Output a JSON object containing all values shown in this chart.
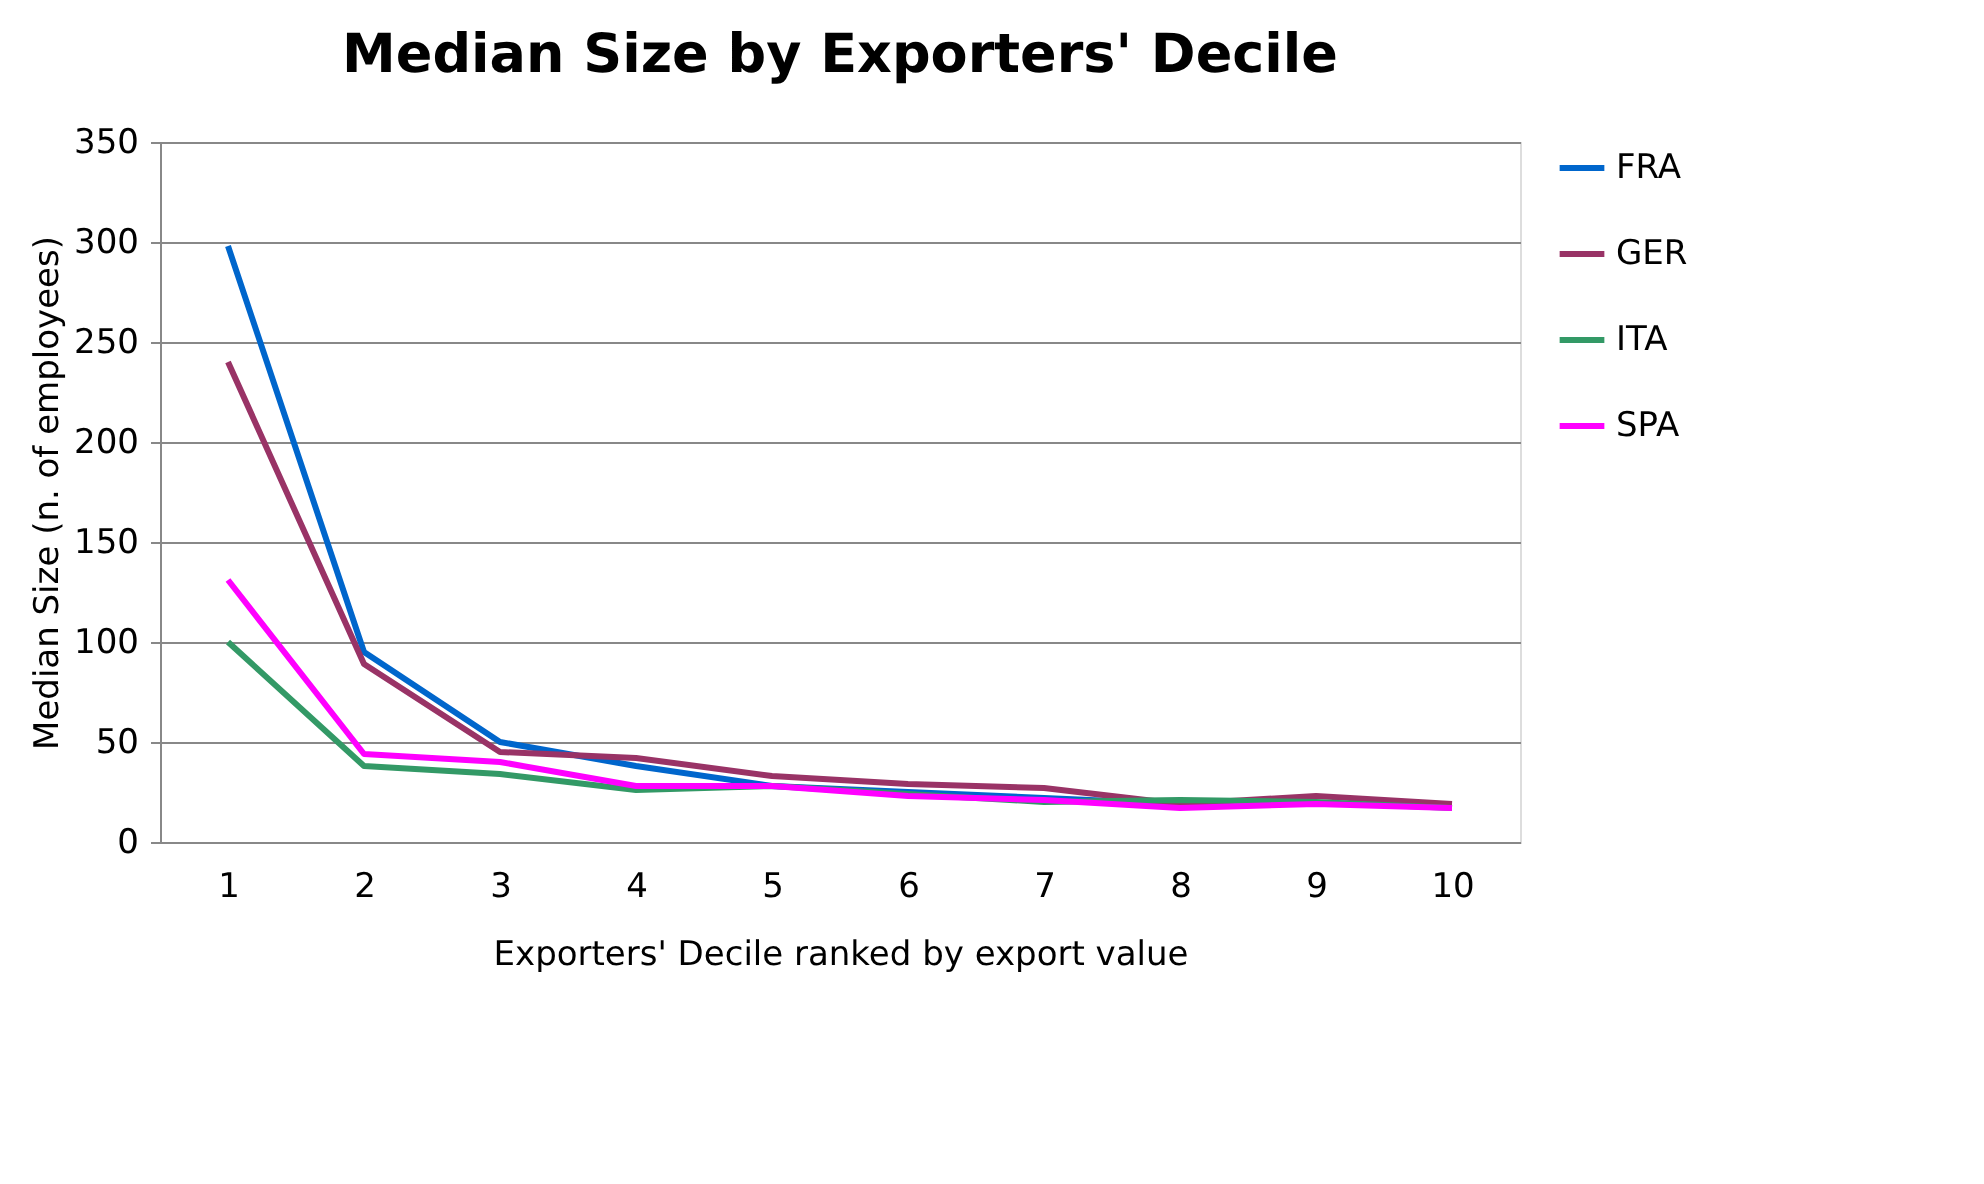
{
  "chart_data": {
    "type": "line",
    "title": "Median Size by Exporters' Decile",
    "xlabel": "Exporters' Decile ranked by export value",
    "ylabel": "Median Size (n. of employees)",
    "categories": [
      "1",
      "2",
      "3",
      "4",
      "5",
      "6",
      "7",
      "8",
      "9",
      "10"
    ],
    "series": [
      {
        "name": "FRA",
        "color": "#0066cc",
        "values": [
          298,
          95,
          50,
          38,
          28,
          25,
          22,
          19,
          null,
          null
        ]
      },
      {
        "name": "GER",
        "color": "#993366",
        "values": [
          240,
          89,
          45,
          42,
          33,
          29,
          27,
          19,
          23,
          19
        ]
      },
      {
        "name": "ITA",
        "color": "#339966",
        "values": [
          100,
          38,
          34,
          26,
          28,
          24,
          20,
          21,
          20,
          17
        ]
      },
      {
        "name": "SPA",
        "color": "#ff00ff",
        "values": [
          131,
          44,
          40,
          28,
          28,
          23,
          21,
          17,
          19,
          17
        ]
      }
    ],
    "ylim": [
      0,
      350
    ],
    "yticks": [
      0,
      50,
      100,
      150,
      200,
      250,
      300,
      350
    ],
    "grid": "y",
    "legend": "right",
    "marker": "none",
    "line_style": "solid"
  }
}
